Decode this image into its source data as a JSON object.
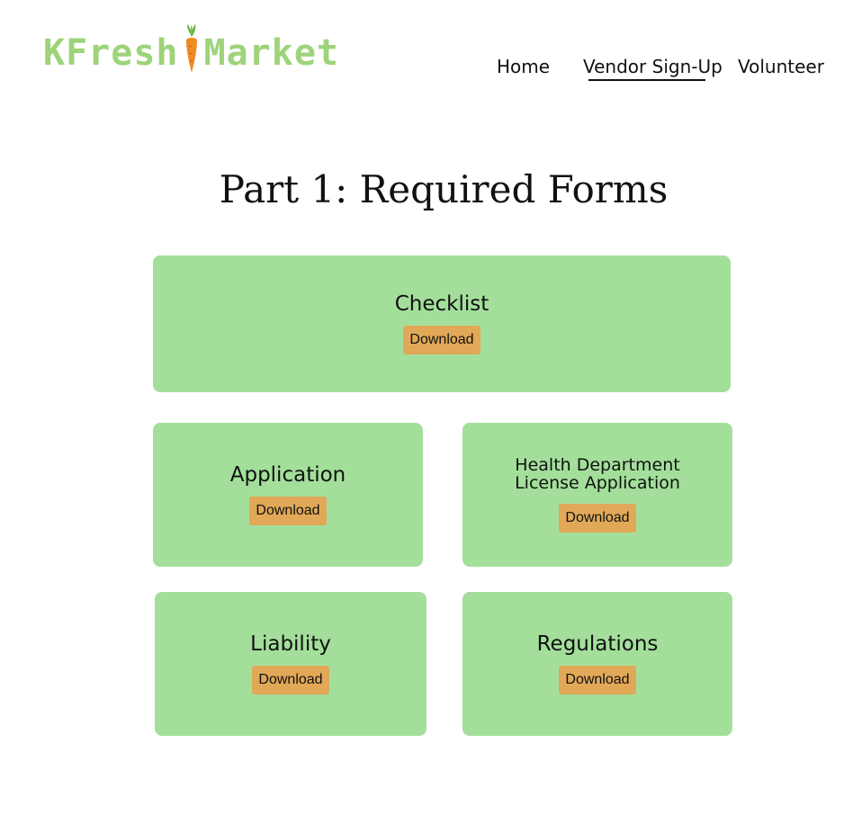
{
  "header": {
    "logo_left": "KFresh",
    "logo_right": "Market",
    "logo_icon": "carrot-icon",
    "brand_color": "#9ed37a"
  },
  "nav": {
    "items": [
      {
        "label": "Home"
      },
      {
        "label": "Vendor Sign-Up",
        "active": true
      },
      {
        "label": "Volunteer"
      }
    ]
  },
  "main": {
    "title": "Part 1: Required Forms",
    "cards": [
      {
        "title": "Checklist",
        "button": "Download"
      },
      {
        "title": "Application",
        "button": "Download"
      },
      {
        "title_line1": "Health Department",
        "title_line2": "License Application",
        "button": "Download"
      },
      {
        "title": "Liability",
        "button": "Download"
      },
      {
        "title": "Regulations",
        "button": "Download"
      }
    ]
  },
  "colors": {
    "card_bg": "#a3df9b",
    "button_bg": "#e1a858",
    "text": "#111111"
  }
}
